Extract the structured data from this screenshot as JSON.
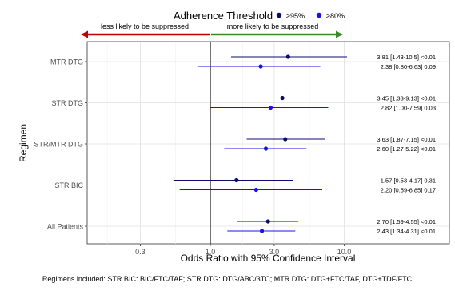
{
  "legend": {
    "title": "Adherence Threshold",
    "placement": "top",
    "entries": [
      {
        "label": "≥95%",
        "color": "#0b0b6e"
      },
      {
        "label": "≥80%",
        "color": "#1414e6"
      }
    ]
  },
  "arrows": {
    "left_label": "less likely to be suppressed",
    "right_label": "more likely to be suppressed",
    "left_color": "#c00000",
    "right_color": "#3a8a2a"
  },
  "footnote": "Regimens included: STR BIC: BIC/FTC/TAF;  STR DTG: DTG/ABC/3TC;  MTR DTG: DTG+FTC/TAF, DTG+TDF/FTC",
  "chart_data": {
    "type": "forest",
    "xlabel": "Odds Ratio with 95% Confidence Interval",
    "ylabel": "Regimen",
    "x_scale": "log",
    "xlim": [
      0.1,
      20
    ],
    "xticks": [
      {
        "value": 0.3,
        "label": "0.3"
      },
      {
        "value": 1.0,
        "label": "1.0"
      },
      {
        "value": 3.0,
        "label": "3.0"
      },
      {
        "value": 10.0,
        "label": "10.0"
      }
    ],
    "reference_line": 1.0,
    "grid": true,
    "categories": [
      "MTR DTG",
      "STR DTG",
      "STR/MTR DTG",
      "STR BIC",
      "All Patients"
    ],
    "series": [
      {
        "name": "≥95%",
        "color": "#0b0b6e",
        "points": [
          {
            "category": "MTR DTG",
            "or": 3.81,
            "lo": 1.43,
            "hi": 10.5,
            "label": "3.81 [1.43-10.5] <0.01"
          },
          {
            "category": "STR DTG",
            "or": 3.45,
            "lo": 1.33,
            "hi": 9.13,
            "label": "3.45 [1.33-9.13] <0.01"
          },
          {
            "category": "STR/MTR DTG",
            "or": 3.63,
            "lo": 1.87,
            "hi": 7.15,
            "label": "3.63 [1.87-7.15] <0.01"
          },
          {
            "category": "STR BIC",
            "or": 1.57,
            "lo": 0.53,
            "hi": 4.17,
            "label": "1.57 [0.53-4.17] 0.31"
          },
          {
            "category": "All Patients",
            "or": 2.7,
            "lo": 1.59,
            "hi": 4.55,
            "label": "2.70 [1.59-4.55] <0.01"
          }
        ]
      },
      {
        "name": "≥80%",
        "color": "#1414e6",
        "points": [
          {
            "category": "MTR DTG",
            "or": 2.38,
            "lo": 0.8,
            "hi": 6.63,
            "label": "2.38 [0.80-6.63] 0.09"
          },
          {
            "category": "STR DTG",
            "or": 2.82,
            "lo": 1.0,
            "hi": 7.59,
            "label": "2.82 [1.00-7.59] 0.03"
          },
          {
            "category": "STR/MTR DTG",
            "or": 2.6,
            "lo": 1.27,
            "hi": 5.22,
            "label": "2.60 [1.27-5.22] <0.01"
          },
          {
            "category": "STR BIC",
            "or": 2.2,
            "lo": 0.59,
            "hi": 6.85,
            "label": "2.20 [0.59-6.85] 0.17"
          },
          {
            "category": "All Patients",
            "or": 2.43,
            "lo": 1.34,
            "hi": 4.31,
            "label": "2.43 [1.34-4.31] <0.01"
          }
        ]
      }
    ]
  }
}
